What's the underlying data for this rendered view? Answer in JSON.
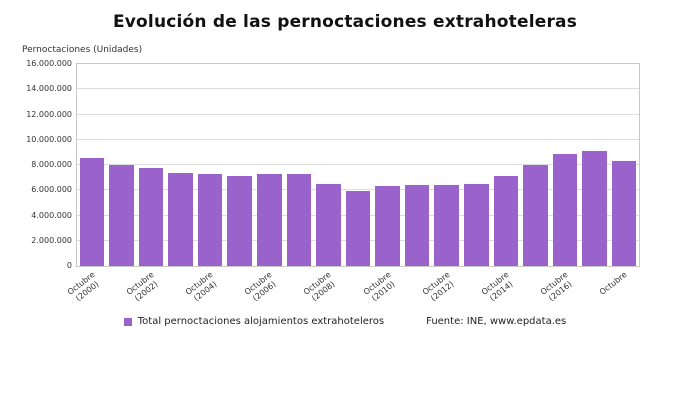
{
  "title": "Evolución de las pernoctaciones extrahoteleras",
  "axis_unit": "Pernoctaciones (Unidades)",
  "legend": {
    "series_label": "Total pernoctaciones alojamientos extrahoteleros",
    "source": "Fuente: INE, www.epdata.es"
  },
  "chart_data": {
    "type": "bar",
    "title": "Evolución de las pernoctaciones extrahoteleras",
    "xlabel": "",
    "ylabel": "Pernoctaciones (Unidades)",
    "categories": [
      "Octubre\n(2000)",
      "",
      "Octubre\n(2002)",
      "",
      "Octubre\n(2004)",
      "",
      "Octubre\n(2006)",
      "",
      "Octubre\n(2008)",
      "",
      "Octubre\n(2010)",
      "",
      "Octubre\n(2012)",
      "",
      "Octubre\n(2014)",
      "",
      "Octubre\n(2016)",
      "",
      "Octubre"
    ],
    "values": [
      8550000,
      8000000,
      7800000,
      7400000,
      7300000,
      7100000,
      7300000,
      7250000,
      6500000,
      5950000,
      6300000,
      6450000,
      6400000,
      6500000,
      7100000,
      8000000,
      8850000,
      9100000,
      8350000
    ],
    "ylim": [
      0,
      16000000
    ],
    "ytick_step": 2000000,
    "ytick_labels": [
      "0",
      "2.000.000",
      "4.000.000",
      "6.000.000",
      "8.000.000",
      "10.000.000",
      "12.000.000",
      "14.000.000",
      "16.000.000"
    ],
    "grid": true,
    "bar_color": "#9a63cc",
    "grid_color": "#dedede",
    "legend_position": "bottom"
  }
}
